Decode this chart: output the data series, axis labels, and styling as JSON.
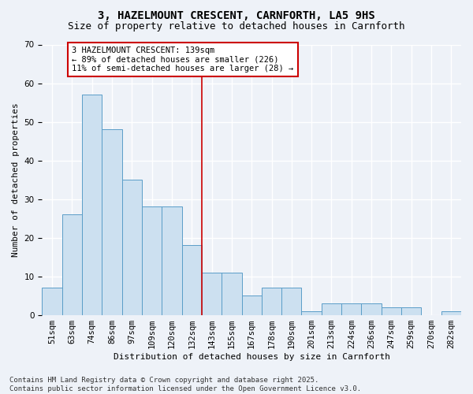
{
  "title": "3, HAZELMOUNT CRESCENT, CARNFORTH, LA5 9HS",
  "subtitle": "Size of property relative to detached houses in Carnforth",
  "xlabel": "Distribution of detached houses by size in Carnforth",
  "ylabel": "Number of detached properties",
  "bin_labels": [
    "51sqm",
    "63sqm",
    "74sqm",
    "86sqm",
    "97sqm",
    "109sqm",
    "120sqm",
    "132sqm",
    "143sqm",
    "155sqm",
    "167sqm",
    "178sqm",
    "190sqm",
    "201sqm",
    "213sqm",
    "224sqm",
    "236sqm",
    "247sqm",
    "259sqm",
    "270sqm",
    "282sqm"
  ],
  "bar_heights": [
    7,
    26,
    57,
    48,
    35,
    28,
    28,
    18,
    11,
    11,
    5,
    7,
    7,
    1,
    3,
    3,
    3,
    2,
    2,
    0,
    1
  ],
  "bar_color": "#cce0f0",
  "bar_edge_color": "#5a9dc8",
  "vline_index": 8,
  "vline_color": "#cc0000",
  "annotation_text": "3 HAZELMOUNT CRESCENT: 139sqm\n← 89% of detached houses are smaller (226)\n11% of semi-detached houses are larger (28) →",
  "annotation_box_color": "#ffffff",
  "annotation_box_edge_color": "#cc0000",
  "ylim": [
    0,
    70
  ],
  "yticks": [
    0,
    10,
    20,
    30,
    40,
    50,
    60,
    70
  ],
  "background_color": "#eef2f8",
  "plot_bg_color": "#eef2f8",
  "grid_color": "#ffffff",
  "footer": "Contains HM Land Registry data © Crown copyright and database right 2025.\nContains public sector information licensed under the Open Government Licence v3.0.",
  "title_fontsize": 10,
  "subtitle_fontsize": 9,
  "label_fontsize": 8,
  "tick_fontsize": 7.5,
  "annotation_fontsize": 7.5,
  "footer_fontsize": 6.5
}
